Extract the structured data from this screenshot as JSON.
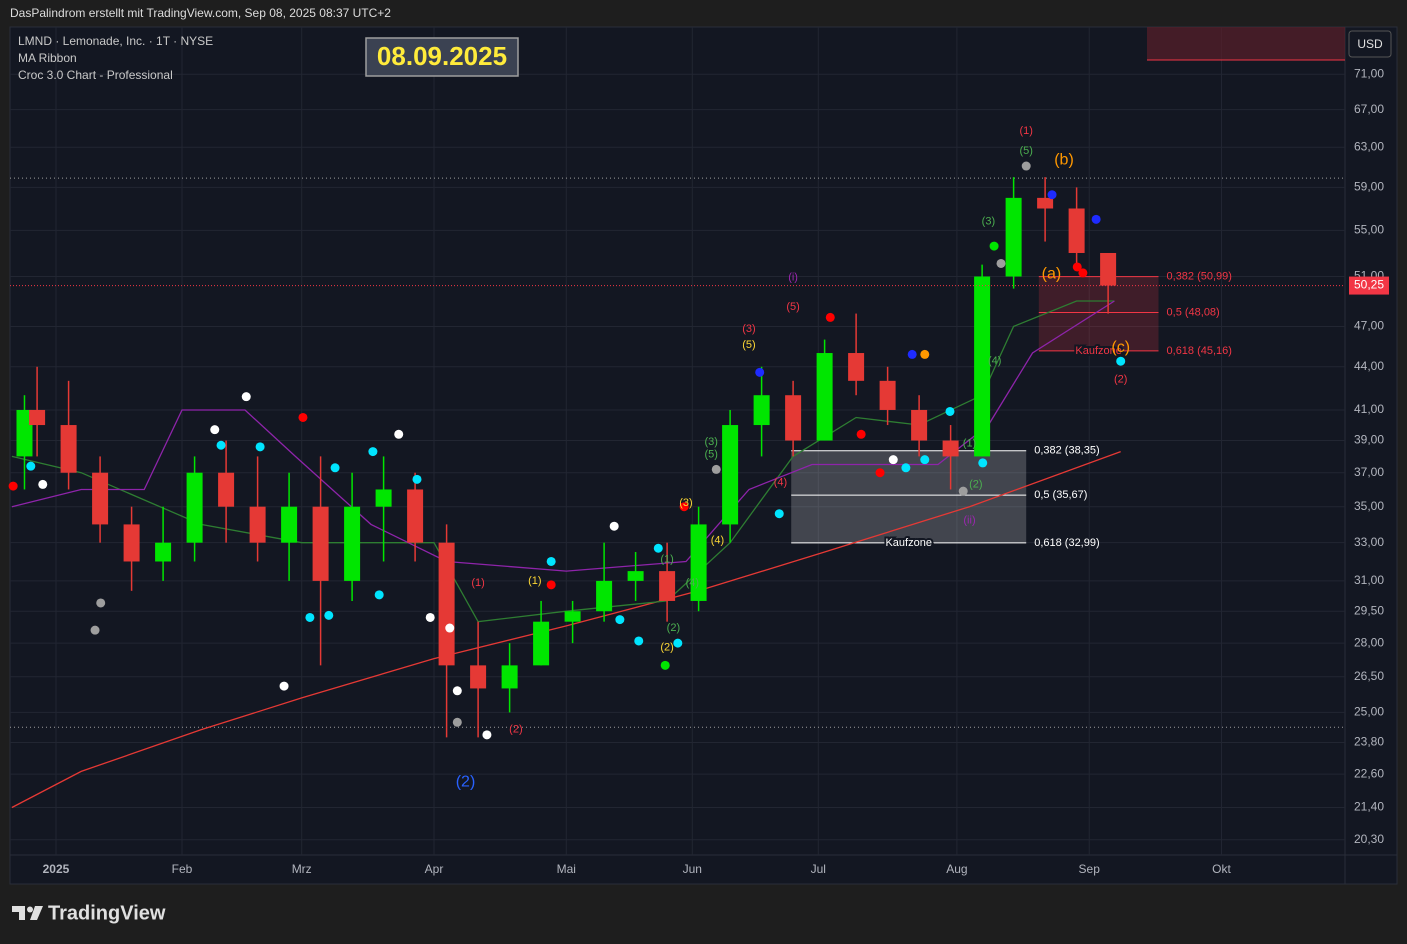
{
  "chart_data": {
    "type": "candlestick",
    "credit": "DasPalindrom erstellt mit TradingView.com, Sep 08, 2025 08:37 UTC+2",
    "title": "LMND · Lemonade, Inc. · 1T · NYSE",
    "indicators": [
      "MA Ribbon",
      "Croc 3.0 Chart - Professional"
    ],
    "date_badge": "08.09.2025",
    "currency": "USD",
    "logo": "TradingView",
    "log_scale": true,
    "grid": true,
    "last_price": {
      "value": 50.25,
      "label": "50,25"
    },
    "xlim": [
      -7.3,
      204.6
    ],
    "xticks": [
      {
        "value": 0,
        "label": "2025"
      },
      {
        "value": 20,
        "label": "Feb"
      },
      {
        "value": 39,
        "label": "Mrz"
      },
      {
        "value": 60,
        "label": "Apr"
      },
      {
        "value": 81,
        "label": "Mai"
      },
      {
        "value": 101,
        "label": "Jun"
      },
      {
        "value": 121,
        "label": "Jul"
      },
      {
        "value": 143,
        "label": "Aug"
      },
      {
        "value": 164,
        "label": "Sep"
      },
      {
        "value": 185,
        "label": "Okt"
      }
    ],
    "ylim": [
      19.8,
      76.7
    ],
    "yticks": [
      {
        "value": 20.3,
        "label": "20,30"
      },
      {
        "value": 21.4,
        "label": "21,40"
      },
      {
        "value": 22.6,
        "label": "22,60"
      },
      {
        "value": 23.8,
        "label": "23,80"
      },
      {
        "value": 25,
        "label": "25,00"
      },
      {
        "value": 26.5,
        "label": "26,50"
      },
      {
        "value": 28,
        "label": "28,00"
      },
      {
        "value": 29.5,
        "label": "29,50"
      },
      {
        "value": 31,
        "label": "31,00"
      },
      {
        "value": 33,
        "label": "33,00"
      },
      {
        "value": 35,
        "label": "35,00"
      },
      {
        "value": 37,
        "label": "37,00"
      },
      {
        "value": 39,
        "label": "39,00"
      },
      {
        "value": 41,
        "label": "41,00"
      },
      {
        "value": 44,
        "label": "44,00"
      },
      {
        "value": 47,
        "label": "47,00"
      },
      {
        "value": 51,
        "label": "51,00"
      },
      {
        "value": 55,
        "label": "55,00"
      },
      {
        "value": 59,
        "label": "59,00"
      },
      {
        "value": 63,
        "label": "63,00"
      },
      {
        "value": 67,
        "label": "67,00"
      },
      {
        "value": 71,
        "label": "71,00"
      }
    ],
    "up_color": "#00e600",
    "down_color": "#e53935",
    "candles": {
      "x": [
        -5,
        -3,
        2,
        7,
        12,
        17,
        22,
        27,
        32,
        37,
        42,
        47,
        52,
        57,
        62,
        67,
        72,
        77,
        82,
        87,
        92,
        97,
        102,
        107,
        112,
        117,
        122,
        127,
        132,
        137,
        142,
        147,
        152,
        157,
        162,
        167
      ],
      "open": [
        38,
        41,
        40,
        37,
        34,
        32,
        33,
        37,
        35,
        33,
        35,
        31,
        35,
        36,
        33,
        27,
        26,
        27,
        29,
        29.5,
        31,
        31.5,
        30,
        34,
        40,
        42,
        39,
        45,
        43,
        41,
        39,
        38,
        51,
        58,
        57,
        53
      ],
      "high": [
        42,
        44,
        43,
        38,
        35,
        35,
        38,
        39,
        38,
        37,
        38,
        37,
        38,
        37,
        34,
        29,
        28,
        30,
        30,
        33,
        32.5,
        33,
        35,
        41,
        44,
        43,
        46,
        48,
        44,
        42,
        40,
        52,
        60,
        60,
        59,
        53
      ],
      "low": [
        36,
        38,
        36,
        33,
        30.5,
        31,
        32,
        33,
        32,
        31,
        27,
        30,
        32,
        32,
        24,
        24,
        25,
        27,
        28,
        29,
        30,
        29,
        29.5,
        33,
        38,
        38,
        39,
        42,
        40,
        38,
        36,
        38,
        50,
        54,
        52,
        48
      ],
      "close": [
        41,
        40,
        37,
        34,
        32,
        33,
        37,
        35,
        33,
        35,
        31,
        35,
        36,
        33,
        27,
        26,
        27,
        29,
        29.5,
        31,
        31.5,
        30,
        34,
        40,
        42,
        39,
        45,
        43,
        41,
        39,
        38,
        51,
        58,
        57,
        53,
        50.25
      ]
    },
    "lines": [
      {
        "color": "#e53935",
        "x": [
          -7,
          4,
          23,
          39,
          60,
          81,
          102,
          122,
          145,
          169
        ],
        "values": [
          21.4,
          22.7,
          24.3,
          25.6,
          27.3,
          28.8,
          30.5,
          32.5,
          35,
          38.3
        ]
      },
      {
        "color": "#2e7d32",
        "x": [
          -7,
          4,
          23,
          39,
          60,
          67,
          81,
          97,
          107,
          117,
          127,
          137,
          147,
          152,
          162,
          168
        ],
        "values": [
          38,
          37,
          34,
          33,
          33,
          29,
          29.5,
          30,
          33,
          38,
          40.5,
          40,
          42,
          47,
          49,
          49
        ]
      },
      {
        "color": "#8e24aa",
        "x": [
          -7,
          4,
          14,
          20,
          30,
          38,
          50,
          62,
          81,
          100,
          110,
          120,
          140,
          148,
          155,
          168
        ],
        "values": [
          35,
          36,
          36,
          41,
          41,
          38,
          34,
          32,
          31.5,
          32,
          36,
          37.5,
          37.5,
          40,
          45,
          49
        ]
      }
    ],
    "hlines": [
      {
        "value": 59.9,
        "color": "#9e9e9e"
      },
      {
        "value": 24.4,
        "color": "#9e9e9e"
      }
    ],
    "zones": [
      {
        "color": "#ffffff",
        "x": [
          116.7,
          154
        ],
        "levels": [
          {
            "value": 38.35,
            "label": "0,382 (38,35)"
          },
          {
            "value": 35.67,
            "label": "0,5 (35,67)"
          },
          {
            "value": 32.99,
            "label": "0,618 (32,99)"
          }
        ],
        "zone_label": "Kaufzone"
      },
      {
        "color": "#f23645",
        "x": [
          156,
          175
        ],
        "levels": [
          {
            "value": 50.99,
            "label": "0,382 (50,99)"
          },
          {
            "value": 48.08,
            "label": "0,5 (48,08)"
          },
          {
            "value": 45.16,
            "label": "0,618 (45,16)"
          }
        ],
        "zone_label": "Kaufzone"
      }
    ],
    "annotations": [
      {
        "text": "(1)",
        "color": "#f23645",
        "x": 154,
        "y": 64.7
      },
      {
        "text": "(5)",
        "color": "#4caf50",
        "x": 154,
        "y": 62.6
      },
      {
        "text": "(b)",
        "color": "#ff9800",
        "x": 160,
        "y": 61.7
      },
      {
        "text": "(a)",
        "color": "#ff9800",
        "x": 158,
        "y": 51.2
      },
      {
        "text": "(c)",
        "color": "#ff9800",
        "x": 169,
        "y": 45.4
      },
      {
        "text": "(2)",
        "color": "#f23645",
        "x": 169,
        "y": 43.1
      },
      {
        "text": "(3)",
        "color": "#4caf50",
        "x": 148,
        "y": 55.8
      },
      {
        "text": "(4)",
        "color": "#4caf50",
        "x": 149,
        "y": 44.4
      },
      {
        "text": "(1)",
        "color": "#4caf50",
        "x": 145,
        "y": 38.8
      },
      {
        "text": "(2)",
        "color": "#4caf50",
        "x": 146,
        "y": 36.3
      },
      {
        "text": "(ii)",
        "color": "#9c27b0",
        "x": 145,
        "y": 34.2
      },
      {
        "text": "(i)",
        "color": "#9c27b0",
        "x": 117,
        "y": 50.9
      },
      {
        "text": "(5)",
        "color": "#f23645",
        "x": 117,
        "y": 48.5
      },
      {
        "text": "(3)",
        "color": "#f23645",
        "x": 110,
        "y": 46.8
      },
      {
        "text": "(5)",
        "color": "#fdd835",
        "x": 110,
        "y": 45.6
      },
      {
        "text": "(4)",
        "color": "#f23645",
        "x": 115,
        "y": 36.4
      },
      {
        "text": "(4)",
        "color": "#fdd835",
        "x": 105,
        "y": 33.1
      },
      {
        "text": "(3)",
        "color": "#fdd835",
        "x": 100,
        "y": 35.2
      },
      {
        "text": "(3)",
        "color": "#4caf50",
        "x": 104,
        "y": 38.9
      },
      {
        "text": "(5)",
        "color": "#4caf50",
        "x": 104,
        "y": 38.1
      },
      {
        "text": "(1)",
        "color": "#4caf50",
        "x": 97,
        "y": 32.1
      },
      {
        "text": "(2)",
        "color": "#4caf50",
        "x": 98,
        "y": 28.7
      },
      {
        "text": "(4)",
        "color": "#4caf50",
        "x": 101,
        "y": 30.9
      },
      {
        "text": "(2)",
        "color": "#fdd835",
        "x": 97,
        "y": 27.8
      },
      {
        "text": "(1)",
        "color": "#fdd835",
        "x": 76,
        "y": 31
      },
      {
        "text": "(1)",
        "color": "#f23645",
        "x": 67,
        "y": 30.9
      },
      {
        "text": "(2)",
        "color": "#f23645",
        "x": 73,
        "y": 24.3
      },
      {
        "text": "(2)",
        "color": "#2962ff",
        "x": 65,
        "y": 22.3
      }
    ],
    "markers": [
      {
        "x": -6.8,
        "y": 36.2,
        "color": "#ff0000"
      },
      {
        "x": -4,
        "y": 37.4,
        "color": "#00e5ff"
      },
      {
        "x": -2.1,
        "y": 36.3,
        "color": "#ffffff"
      },
      {
        "x": 7.1,
        "y": 29.9,
        "color": "#9e9e9e"
      },
      {
        "x": 6.2,
        "y": 28.6,
        "color": "#9e9e9e"
      },
      {
        "x": 25.2,
        "y": 39.7,
        "color": "#ffffff"
      },
      {
        "x": 26.2,
        "y": 38.7,
        "color": "#00e5ff"
      },
      {
        "x": 30.2,
        "y": 41.9,
        "color": "#ffffff"
      },
      {
        "x": 32.4,
        "y": 38.6,
        "color": "#00e5ff"
      },
      {
        "x": 39.2,
        "y": 40.5,
        "color": "#ff0000"
      },
      {
        "x": 36.2,
        "y": 26.1,
        "color": "#ffffff"
      },
      {
        "x": 40.3,
        "y": 29.2,
        "color": "#00e5ff"
      },
      {
        "x": 43.3,
        "y": 29.3,
        "color": "#00e5ff"
      },
      {
        "x": 44.3,
        "y": 37.3,
        "color": "#00e5ff"
      },
      {
        "x": 50.3,
        "y": 38.3,
        "color": "#00e5ff"
      },
      {
        "x": 54.4,
        "y": 39.4,
        "color": "#ffffff"
      },
      {
        "x": 51.3,
        "y": 30.3,
        "color": "#00e5ff"
      },
      {
        "x": 57.3,
        "y": 36.6,
        "color": "#00e5ff"
      },
      {
        "x": 59.4,
        "y": 29.2,
        "color": "#ffffff"
      },
      {
        "x": 62.5,
        "y": 28.7,
        "color": "#ffffff"
      },
      {
        "x": 63.7,
        "y": 25.9,
        "color": "#ffffff"
      },
      {
        "x": 63.7,
        "y": 24.6,
        "color": "#9e9e9e"
      },
      {
        "x": 68.4,
        "y": 24.1,
        "color": "#ffffff"
      },
      {
        "x": 78.6,
        "y": 30.8,
        "color": "#ff0000"
      },
      {
        "x": 78.6,
        "y": 32,
        "color": "#00e5ff"
      },
      {
        "x": 88.6,
        "y": 33.9,
        "color": "#ffffff"
      },
      {
        "x": 89.5,
        "y": 29.1,
        "color": "#00e5ff"
      },
      {
        "x": 92.5,
        "y": 28.1,
        "color": "#00e5ff"
      },
      {
        "x": 95.6,
        "y": 32.7,
        "color": "#00e5ff"
      },
      {
        "x": 98.7,
        "y": 28,
        "color": "#00e5ff"
      },
      {
        "x": 96.7,
        "y": 27,
        "color": "#00e600"
      },
      {
        "x": 99.7,
        "y": 35,
        "color": "#ff0000"
      },
      {
        "x": 104.8,
        "y": 37.2,
        "color": "#9e9e9e"
      },
      {
        "x": 111.7,
        "y": 43.6,
        "color": "#1e2bff"
      },
      {
        "x": 122.9,
        "y": 47.7,
        "color": "#ff0000"
      },
      {
        "x": 127.8,
        "y": 39.4,
        "color": "#ff0000"
      },
      {
        "x": 130.8,
        "y": 37,
        "color": "#ff0000"
      },
      {
        "x": 132.9,
        "y": 37.8,
        "color": "#ffffff"
      },
      {
        "x": 134.9,
        "y": 37.3,
        "color": "#00e5ff"
      },
      {
        "x": 137.9,
        "y": 37.8,
        "color": "#00e5ff"
      },
      {
        "x": 141.9,
        "y": 40.9,
        "color": "#00e5ff"
      },
      {
        "x": 135.9,
        "y": 44.9,
        "color": "#1e2bff"
      },
      {
        "x": 137.9,
        "y": 44.9,
        "color": "#ff9800"
      },
      {
        "x": 114.8,
        "y": 34.6,
        "color": "#00e5ff"
      },
      {
        "x": 144,
        "y": 35.9,
        "color": "#9e9e9e"
      },
      {
        "x": 147.1,
        "y": 37.6,
        "color": "#00e5ff"
      },
      {
        "x": 148.9,
        "y": 53.6,
        "color": "#00e600"
      },
      {
        "x": 150,
        "y": 52.1,
        "color": "#9e9e9e"
      },
      {
        "x": 154,
        "y": 61.1,
        "color": "#9e9e9e"
      },
      {
        "x": 158.1,
        "y": 58.3,
        "color": "#1e2bff"
      },
      {
        "x": 165.1,
        "y": 56,
        "color": "#1e2bff"
      },
      {
        "x": 162.1,
        "y": 51.8,
        "color": "#ff0000"
      },
      {
        "x": 163,
        "y": 51.3,
        "color": "#ff0000"
      },
      {
        "x": 169,
        "y": 44.4,
        "color": "#00e5ff"
      }
    ]
  }
}
